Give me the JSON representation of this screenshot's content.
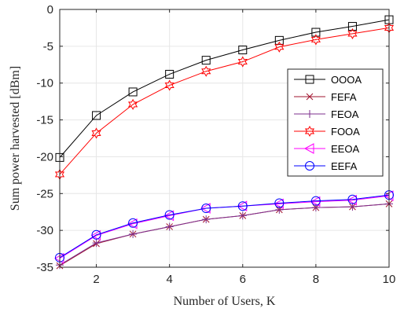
{
  "chart_data": {
    "type": "line",
    "xlabel": "Number of Users, K",
    "ylabel": "Sum power harvested [dBm]",
    "xlim": [
      1,
      10
    ],
    "ylim": [
      -35,
      0
    ],
    "xticks": [
      2,
      4,
      6,
      8,
      10
    ],
    "yticks": [
      -35,
      -30,
      -25,
      -20,
      -15,
      -10,
      -5,
      0
    ],
    "x": [
      1,
      2,
      3,
      4,
      5,
      6,
      7,
      8,
      9,
      10
    ],
    "legend_position": "right",
    "series": [
      {
        "name": "OOOA",
        "color": "#000000",
        "marker": "square",
        "values": [
          -20.1,
          -14.4,
          -11.2,
          -8.8,
          -6.9,
          -5.5,
          -4.2,
          -3.1,
          -2.3,
          -1.4
        ]
      },
      {
        "name": "FEFA",
        "color": "#a2142f",
        "marker": "x",
        "values": [
          -34.8,
          -31.8,
          -30.5,
          -29.5,
          -28.5,
          -28.0,
          -27.2,
          -26.9,
          -26.8,
          -26.4
        ]
      },
      {
        "name": "FEOA",
        "color": "#7e2f8e",
        "marker": "plus",
        "values": [
          -34.7,
          -31.7,
          -30.5,
          -29.5,
          -28.5,
          -28.0,
          -27.2,
          -26.9,
          -26.8,
          -26.4
        ]
      },
      {
        "name": "FOOA",
        "color": "#ff0000",
        "marker": "hexagram",
        "values": [
          -22.4,
          -16.8,
          -12.9,
          -10.3,
          -8.4,
          -7.1,
          -5.1,
          -4.1,
          -3.3,
          -2.5
        ]
      },
      {
        "name": "EEOA",
        "color": "#ff00ff",
        "marker": "triangle-left",
        "values": [
          -33.8,
          -30.7,
          -29.1,
          -28.0,
          -27.0,
          -26.7,
          -26.4,
          -26.1,
          -25.9,
          -25.3
        ]
      },
      {
        "name": "EEFA",
        "color": "#0000ff",
        "marker": "circle",
        "values": [
          -33.7,
          -30.6,
          -29.0,
          -27.9,
          -27.0,
          -26.7,
          -26.3,
          -26.0,
          -25.8,
          -25.2
        ]
      }
    ]
  }
}
